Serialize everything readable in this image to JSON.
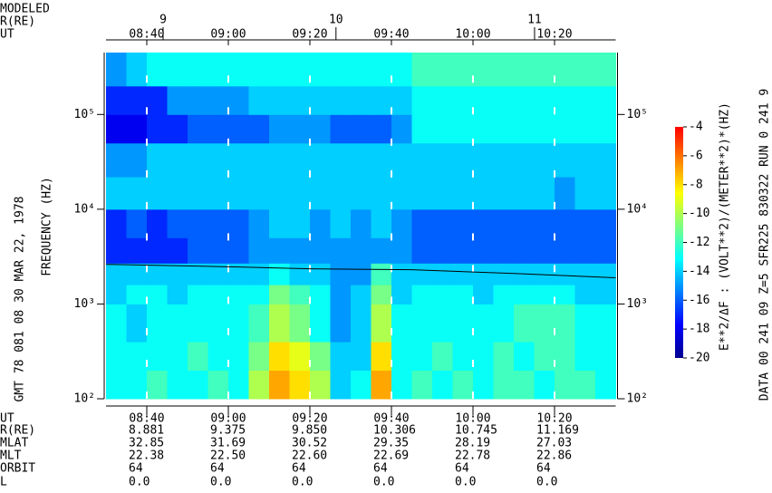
{
  "chart_data": {
    "type": "spectrogram",
    "top_axis_labels": [
      "MODELED",
      "R(RE)",
      "UT"
    ],
    "ylabel": "FREQUENCY (HZ)",
    "left_note": "GMT 78 081 08 30   MAR 22, 1978",
    "right_note": "DATA  00 241 09 Z=5 SFR225 830322 RUN  0  241 9",
    "colorbar_label": "E**2/ΔF : (VOLT**2)/(METER**2)*(HZ)",
    "xlim": [
      510,
      635
    ],
    "xticks": [
      {
        "value": 520,
        "label": "08:40"
      },
      {
        "value": 540,
        "label": "09:00"
      },
      {
        "value": 560,
        "label": "09:20"
      },
      {
        "value": 580,
        "label": "09:40"
      },
      {
        "value": 600,
        "label": "10:00"
      },
      {
        "value": 620,
        "label": "10:20"
      }
    ],
    "x2ticks": [
      {
        "value": 524,
        "label": "9"
      },
      {
        "value": 566.4,
        "label": "10"
      },
      {
        "value": 615.1,
        "label": "11"
      }
    ],
    "ylim": [
      100,
      450000
    ],
    "log_y": true,
    "yticks": [
      {
        "value": 100,
        "label": "10²"
      },
      {
        "value": 1000,
        "label": "10³"
      },
      {
        "value": 10000,
        "label": "10⁴"
      },
      {
        "value": 100000,
        "label": "10⁵"
      }
    ],
    "xbins": [
      510,
      515,
      520,
      525,
      530,
      535,
      540,
      545,
      550,
      555,
      560,
      565,
      570,
      575,
      580,
      585,
      590,
      595,
      600,
      605,
      610,
      615,
      620,
      625,
      630,
      635
    ],
    "ybins": [
      100,
      200,
      400,
      1000,
      1600,
      2700,
      5000,
      10000,
      22000,
      50000,
      100000,
      200000,
      450000
    ],
    "z": [
      [
        -13,
        -13,
        -12,
        -13,
        -13,
        -12,
        -13,
        -10,
        -7,
        -8,
        -10,
        -14,
        -13,
        -7,
        -13,
        -12,
        -13,
        -12,
        -13,
        -12,
        -12,
        -13,
        -12,
        -12,
        -13
      ],
      [
        -13,
        -13,
        -13,
        -13,
        -12,
        -13,
        -13,
        -11,
        -8,
        -9,
        -11,
        -14,
        -14,
        -8,
        -13,
        -13,
        -12,
        -13,
        -13,
        -12,
        -13,
        -12,
        -12,
        -13,
        -13
      ],
      [
        -13,
        -14,
        -13,
        -13,
        -13,
        -13,
        -13,
        -12,
        -10,
        -11,
        -13,
        -15,
        -14,
        -10,
        -13,
        -13,
        -13,
        -13,
        -13,
        -13,
        -12,
        -12,
        -12,
        -13,
        -13
      ],
      [
        -14,
        -13,
        -13,
        -14,
        -13,
        -13,
        -13,
        -13,
        -11,
        -12,
        -13,
        -15,
        -14,
        -11,
        -14,
        -13,
        -13,
        -13,
        -14,
        -13,
        -13,
        -13,
        -13,
        -14,
        -14
      ],
      [
        -14,
        -14,
        -14,
        -14,
        -14,
        -14,
        -14,
        -14,
        -13,
        -14,
        -14,
        -15,
        -15,
        -12,
        -14,
        -14,
        -14,
        -14,
        -14,
        -14,
        -14,
        -14,
        -14,
        -14,
        -14
      ],
      [
        -17,
        -17,
        -17,
        -17,
        -16,
        -16,
        -16,
        -15,
        -15,
        -15,
        -15,
        -15,
        -15,
        -15,
        -15,
        -16,
        -16,
        -16,
        -16,
        -16,
        -16,
        -16,
        -16,
        -16,
        -16
      ],
      [
        -17,
        -16,
        -17,
        -16,
        -16,
        -16,
        -16,
        -15,
        -14,
        -14,
        -15,
        -14,
        -15,
        -14,
        -15,
        -16,
        -16,
        -16,
        -16,
        -16,
        -16,
        -16,
        -16,
        -16,
        -16
      ],
      [
        -14,
        -14,
        -14,
        -14,
        -14,
        -14,
        -14,
        -14,
        -14,
        -14,
        -14,
        -14,
        -14,
        -14,
        -14,
        -14,
        -14,
        -14,
        -14,
        -14,
        -14,
        -14,
        -15,
        -14,
        -14
      ],
      [
        -15,
        -15,
        -14,
        -14,
        -14,
        -14,
        -14,
        -14,
        -14,
        -14,
        -14,
        -14,
        -14,
        -14,
        -14,
        -14,
        -14,
        -14,
        -14,
        -14,
        -14,
        -14,
        -14,
        -14,
        -14
      ],
      [
        -18,
        -18,
        -17,
        -17,
        -16,
        -16,
        -16,
        -16,
        -15,
        -15,
        -15,
        -16,
        -16,
        -16,
        -15,
        -13,
        -13,
        -13,
        -13,
        -13,
        -13,
        -13,
        -13,
        -13,
        -13
      ],
      [
        -17,
        -17,
        -17,
        -15,
        -15,
        -15,
        -15,
        -14,
        -14,
        -14,
        -14,
        -14,
        -14,
        -14,
        -14,
        -13,
        -13,
        -13,
        -13,
        -13,
        -13,
        -13,
        -13,
        -13,
        -13
      ],
      [
        -15,
        -14,
        -13,
        -13,
        -13,
        -13,
        -13,
        -13,
        -13,
        -13,
        -13,
        -13,
        -13,
        -13,
        -13,
        -12,
        -12,
        -12,
        -12,
        -12,
        -12,
        -12,
        -12,
        -12,
        -12
      ]
    ],
    "colormap": [
      "#00008f",
      "#0000ff",
      "#007fff",
      "#00ffff",
      "#7fff7f",
      "#ffff00",
      "#ff7f00",
      "#ff0000"
    ],
    "clim": [
      -20,
      -4
    ],
    "cticks": [
      -4,
      -6,
      -8,
      -10,
      -12,
      -14,
      -16,
      -18,
      -20
    ],
    "line": {
      "color": "#000000",
      "x": [
        510,
        535,
        560,
        585,
        610,
        635
      ],
      "y": [
        2620,
        2500,
        2350,
        2300,
        2100,
        1890
      ]
    },
    "ephemeris": {
      "labels": [
        "UT",
        "R(RE)",
        "MLAT",
        "MLT",
        "ORBIT",
        "L"
      ],
      "rows": [
        [
          "8.881",
          "9.375",
          "9.850",
          "10.306",
          "10.745",
          "11.169"
        ],
        [
          "32.85",
          "31.69",
          "30.52",
          "29.35",
          "28.19",
          "27.03"
        ],
        [
          "22.38",
          "22.50",
          "22.60",
          "22.69",
          "22.78",
          "22.86"
        ],
        [
          "64",
          "64",
          "64",
          "64",
          "64",
          "64"
        ],
        [
          "0.0",
          "0.0",
          "0.0",
          "0.0",
          "0.0",
          "0.0"
        ]
      ]
    }
  }
}
